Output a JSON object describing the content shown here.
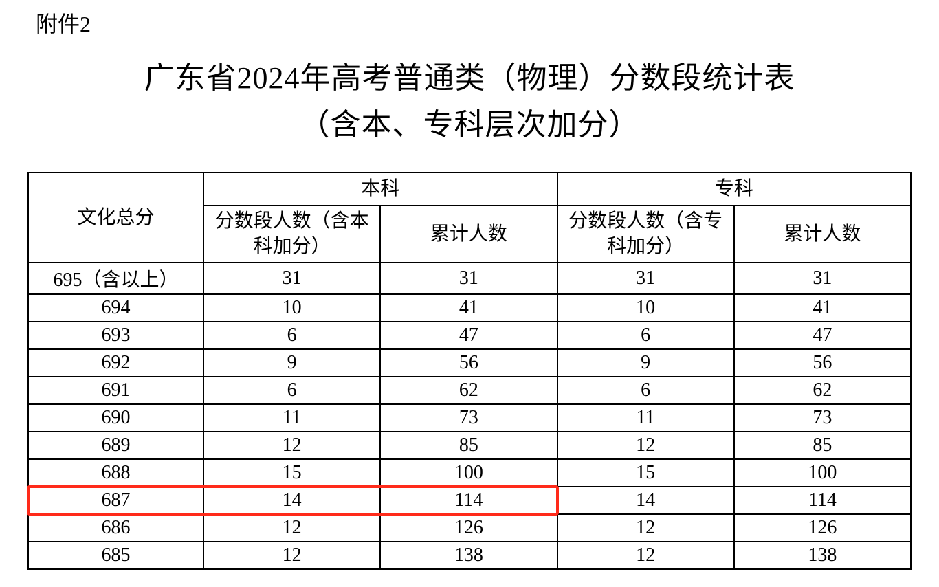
{
  "attachment_label": "附件2",
  "title_line1": "广东省2024年高考普通类（物理）分数段统计表",
  "title_line2": "（含本、专科层次加分）",
  "table": {
    "col_score": "文化总分",
    "group_benke": "本科",
    "group_zhuanke": "专科",
    "col_segcount_benke": "分数段人数（含本科加分）",
    "col_cumcount": "累计人数",
    "col_segcount_zhuanke": "分数段人数（含专科加分）",
    "rows": [
      {
        "score": "695（含以上）",
        "bk_seg": "31",
        "bk_cum": "31",
        "zk_seg": "31",
        "zk_cum": "31"
      },
      {
        "score": "694",
        "bk_seg": "10",
        "bk_cum": "41",
        "zk_seg": "10",
        "zk_cum": "41"
      },
      {
        "score": "693",
        "bk_seg": "6",
        "bk_cum": "47",
        "zk_seg": "6",
        "zk_cum": "47"
      },
      {
        "score": "692",
        "bk_seg": "9",
        "bk_cum": "56",
        "zk_seg": "9",
        "zk_cum": "56"
      },
      {
        "score": "691",
        "bk_seg": "6",
        "bk_cum": "62",
        "zk_seg": "6",
        "zk_cum": "62"
      },
      {
        "score": "690",
        "bk_seg": "11",
        "bk_cum": "73",
        "zk_seg": "11",
        "zk_cum": "73"
      },
      {
        "score": "689",
        "bk_seg": "12",
        "bk_cum": "85",
        "zk_seg": "12",
        "zk_cum": "85"
      },
      {
        "score": "688",
        "bk_seg": "15",
        "bk_cum": "100",
        "zk_seg": "15",
        "zk_cum": "100"
      },
      {
        "score": "687",
        "bk_seg": "14",
        "bk_cum": "114",
        "zk_seg": "14",
        "zk_cum": "114"
      },
      {
        "score": "686",
        "bk_seg": "12",
        "bk_cum": "126",
        "zk_seg": "12",
        "zk_cum": "126"
      },
      {
        "score": "685",
        "bk_seg": "12",
        "bk_cum": "138",
        "zk_seg": "12",
        "zk_cum": "138"
      }
    ],
    "highlight_row_index": 8,
    "highlight_color": "#ff2a1a",
    "border_color": "#000000",
    "background_color": "#ffffff",
    "font_family": "SimSun",
    "header_fontsize_pt": 21,
    "cell_fontsize_pt": 21
  }
}
